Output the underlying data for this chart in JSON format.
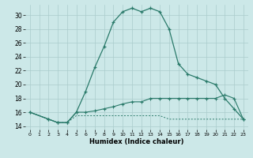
{
  "xlabel": "Humidex (Indice chaleur)",
  "bg_color": "#cce8e8",
  "grid_color": "#aacccc",
  "line_color": "#2a7a6a",
  "xlim": [
    -0.5,
    23.5
  ],
  "ylim": [
    13.5,
    31.5
  ],
  "xticks": [
    0,
    1,
    2,
    3,
    4,
    5,
    6,
    7,
    8,
    9,
    10,
    11,
    12,
    13,
    14,
    15,
    16,
    17,
    18,
    19,
    20,
    21,
    22,
    23
  ],
  "yticks": [
    14,
    16,
    18,
    20,
    22,
    24,
    26,
    28,
    30
  ],
  "line1_x": [
    0,
    2,
    3,
    4,
    5,
    6,
    7,
    8,
    9,
    10,
    11,
    12,
    13,
    14,
    15,
    16,
    17,
    18,
    19,
    20,
    21,
    22,
    23
  ],
  "line1_y": [
    16,
    15,
    14.5,
    14.5,
    16,
    19,
    22.5,
    25.5,
    29,
    30.5,
    31,
    30.5,
    31,
    30.5,
    28,
    23,
    21.5,
    21,
    20.5,
    20,
    18,
    16.5,
    15
  ],
  "line2_x": [
    0,
    2,
    3,
    4,
    5,
    6,
    7,
    8,
    9,
    10,
    11,
    12,
    13,
    14,
    15,
    16,
    17,
    18,
    19,
    20,
    21,
    22,
    23
  ],
  "line2_y": [
    16,
    15,
    14.5,
    14.5,
    16,
    16,
    16.2,
    16.5,
    16.8,
    17.2,
    17.5,
    17.5,
    18,
    18,
    18,
    18,
    18,
    18,
    18,
    18,
    18.5,
    18,
    15
  ],
  "line3_x": [
    0,
    2,
    3,
    4,
    5,
    6,
    7,
    8,
    9,
    10,
    11,
    12,
    13,
    14,
    15,
    16,
    17,
    18,
    19,
    20,
    21,
    22,
    23
  ],
  "line3_y": [
    16,
    15,
    14.5,
    14.5,
    15.5,
    15.5,
    15.5,
    15.5,
    15.5,
    15.5,
    15.5,
    15.5,
    15.5,
    15.5,
    15,
    15,
    15,
    15,
    15,
    15,
    15,
    15,
    15
  ]
}
